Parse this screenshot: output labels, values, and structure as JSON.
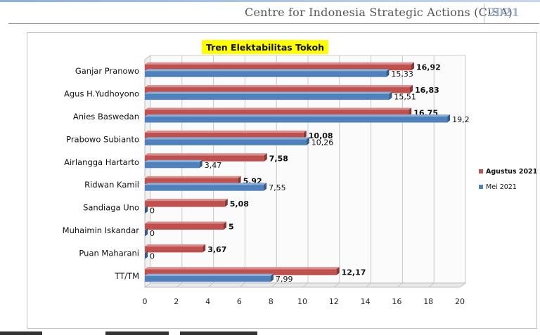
{
  "header": {
    "org": "Centre for Indonesia Strategic Actions (CISA)",
    "year": "2021"
  },
  "chart_data": {
    "type": "bar",
    "orientation": "horizontal",
    "title": "Tren Elektabilitas Tokoh",
    "categories": [
      "Ganjar Pranowo",
      "Agus H.Yudhoyono",
      "Anies Baswedan",
      "Prabowo Subianto",
      "Airlangga Hartarto",
      "Ridwan Kamil",
      "Sandiaga Uno",
      "Muhaimin Iskandar",
      "Puan Maharani",
      "TT/TM"
    ],
    "series": [
      {
        "name": "Agustus 2021",
        "color": "#c0504d",
        "values": [
          16.92,
          16.83,
          16.75,
          10.08,
          7.58,
          5.92,
          5.08,
          5,
          3.67,
          12.17
        ],
        "labels": [
          "16,92",
          "16,83",
          "16,75",
          "10,08",
          "7,58",
          "5,92",
          "5,08",
          "5",
          "3,67",
          "12,17"
        ]
      },
      {
        "name": "Mei 2021",
        "color": "#4f81bd",
        "values": [
          15.33,
          15.51,
          19.2,
          10.26,
          3.47,
          7.55,
          0,
          0,
          0,
          7.99
        ],
        "labels": [
          "15,33",
          "15,51",
          "19,2",
          "10,26",
          "3,47",
          "7,55",
          "0",
          "0",
          "0",
          "7,99"
        ]
      }
    ],
    "xlim": [
      0,
      20
    ],
    "xticks": [
      "0",
      "2",
      "4",
      "6",
      "8",
      "10",
      "12",
      "14",
      "16",
      "18",
      "20"
    ],
    "grid": true,
    "legend_position": "right"
  }
}
